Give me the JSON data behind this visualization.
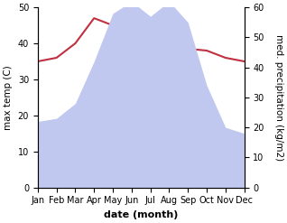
{
  "months": [
    "Jan",
    "Feb",
    "Mar",
    "Apr",
    "May",
    "Jun",
    "Jul",
    "Aug",
    "Sep",
    "Oct",
    "Nov",
    "Dec"
  ],
  "temperature": [
    35,
    36,
    40,
    47,
    45,
    35,
    37,
    38.5,
    38.5,
    38,
    36,
    35
  ],
  "precipitation": [
    22,
    23,
    28,
    42,
    58,
    62,
    57,
    62,
    55,
    34,
    20,
    18
  ],
  "temp_color": "#c03040",
  "precip_fill_color": "#c0c8f0",
  "temp_ylim": [
    0,
    50
  ],
  "precip_ylim": [
    0,
    60
  ],
  "xlabel": "date (month)",
  "ylabel_left": "max temp (C)",
  "ylabel_right": "med. precipitation (kg/m2)",
  "label_fontsize": 7.5,
  "tick_fontsize": 7
}
